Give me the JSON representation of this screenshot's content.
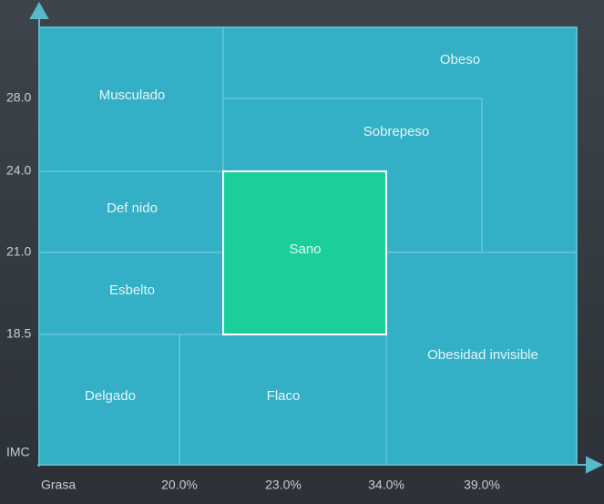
{
  "y_axis": {
    "title": "IMC",
    "ticks": [
      "28.0",
      "24.0",
      "21.0",
      "18.5"
    ]
  },
  "x_axis": {
    "title": "Grasa",
    "ticks": [
      "20.0%",
      "23.0%",
      "34.0%",
      "39.0%"
    ]
  },
  "regions": [
    {
      "label": "Musculado"
    },
    {
      "label": "Obeso"
    },
    {
      "label": "Sobrepeso"
    },
    {
      "label": "Def nido"
    },
    {
      "label": "Sano"
    },
    {
      "label": "Esbelto"
    },
    {
      "label": "Delgado"
    },
    {
      "label": "Flaco"
    },
    {
      "label": "Obesidad invisible"
    }
  ]
}
